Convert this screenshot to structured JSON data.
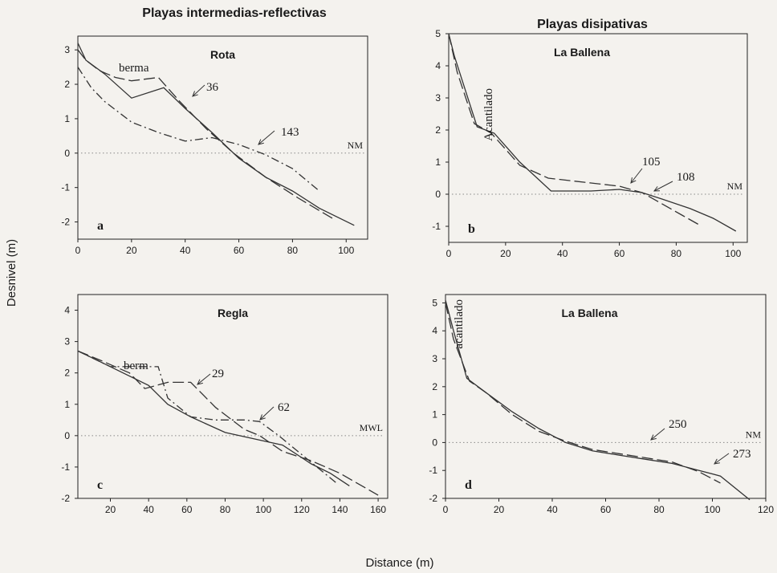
{
  "figure": {
    "column_titles": [
      "Playas intermedias-reflectivas",
      "Playas disipativas"
    ],
    "ylabel": "Desnivel (m)",
    "xlabel": "Distance (m)"
  },
  "chart_data": [
    {
      "type": "line",
      "panel": "a",
      "title": "Rota",
      "xlim": [
        0,
        108
      ],
      "ylim": [
        -2.5,
        3.4
      ],
      "xticks": [
        0,
        20,
        40,
        60,
        80,
        100
      ],
      "yticks": [
        3,
        2,
        1,
        0,
        -1,
        -2
      ],
      "reference_line": {
        "label": "NM",
        "y": 0
      },
      "series": [
        {
          "name": "36",
          "style": "solid",
          "x": [
            0,
            3,
            10,
            20,
            32,
            40,
            50,
            60,
            70,
            80,
            90,
            103
          ],
          "y": [
            3.2,
            2.7,
            2.3,
            1.6,
            1.9,
            1.3,
            0.6,
            -0.15,
            -0.7,
            -1.1,
            -1.6,
            -2.1
          ]
        },
        {
          "name": "berma",
          "style": "long-dash",
          "x": [
            0,
            3,
            8,
            14,
            20,
            30,
            38,
            48,
            58,
            70,
            82,
            95
          ],
          "y": [
            3.0,
            2.7,
            2.4,
            2.2,
            2.1,
            2.2,
            1.5,
            0.7,
            0.0,
            -0.7,
            -1.3,
            -1.9
          ]
        },
        {
          "name": "143",
          "style": "long-dash",
          "x": [
            0,
            5,
            10,
            20,
            30,
            40,
            50,
            60,
            70,
            80,
            90
          ],
          "y": [
            2.5,
            1.9,
            1.5,
            0.9,
            0.6,
            0.35,
            0.45,
            0.25,
            -0.05,
            -0.45,
            -1.1
          ]
        }
      ],
      "annotations": [
        "berma",
        "36",
        "143"
      ]
    },
    {
      "type": "line",
      "panel": "b",
      "title": "La Ballena",
      "xlim": [
        0,
        105
      ],
      "ylim": [
        -1.5,
        5
      ],
      "xticks": [
        0,
        20,
        40,
        60,
        80,
        100
      ],
      "yticks": [
        5,
        4,
        3,
        2,
        1,
        0,
        -1
      ],
      "reference_line": {
        "label": "NM",
        "y": 0
      },
      "series": [
        {
          "name": "108",
          "style": "solid",
          "x": [
            0,
            2,
            10,
            16,
            25,
            36,
            50,
            60,
            68,
            75,
            85,
            93,
            101
          ],
          "y": [
            5.0,
            4.3,
            2.1,
            1.9,
            1.0,
            0.1,
            0.1,
            0.15,
            0.05,
            -0.15,
            -0.45,
            -0.75,
            -1.15
          ]
        },
        {
          "name": "105",
          "style": "long-dash",
          "x": [
            0,
            3,
            9,
            15,
            25,
            35,
            50,
            60,
            68,
            74,
            82,
            88
          ],
          "y": [
            5.0,
            3.8,
            2.2,
            1.9,
            0.9,
            0.5,
            0.35,
            0.25,
            0.05,
            -0.25,
            -0.65,
            -0.95
          ]
        }
      ],
      "annotations": [
        "Acantilado",
        "105",
        "108"
      ]
    },
    {
      "type": "line",
      "panel": "c",
      "title": "Regla",
      "xlim": [
        3,
        165
      ],
      "ylim": [
        -2,
        4.5
      ],
      "xticks": [
        20,
        40,
        60,
        80,
        100,
        120,
        140,
        160
      ],
      "yticks": [
        4,
        3,
        2,
        1,
        0,
        -1,
        -2
      ],
      "reference_line": {
        "label": "MWL",
        "y": 0
      },
      "series": [
        {
          "name": "berm",
          "style": "solid",
          "x": [
            3,
            20,
            40,
            50,
            62,
            80,
            95,
            110,
            125,
            135,
            145
          ],
          "y": [
            2.7,
            2.2,
            1.6,
            1.0,
            0.6,
            0.1,
            -0.1,
            -0.3,
            -0.9,
            -1.2,
            -1.6
          ]
        },
        {
          "name": "29",
          "style": "long-dash",
          "x": [
            3,
            15,
            30,
            38,
            50,
            62,
            75,
            90,
            98,
            110,
            125,
            140,
            160
          ],
          "y": [
            2.7,
            2.4,
            2.0,
            1.5,
            1.7,
            1.7,
            0.9,
            0.2,
            0.0,
            -0.5,
            -0.8,
            -1.2,
            -1.9
          ]
        },
        {
          "name": "62",
          "style": "long-dash",
          "x": [
            3,
            20,
            35,
            45,
            50,
            62,
            75,
            90,
            98,
            108,
            118,
            128,
            138
          ],
          "y": [
            2.7,
            2.2,
            2.2,
            2.2,
            1.2,
            0.6,
            0.5,
            0.5,
            0.45,
            0.0,
            -0.5,
            -1.0,
            -1.5
          ]
        }
      ],
      "annotations": [
        "berm",
        "29",
        "62"
      ]
    },
    {
      "type": "line",
      "panel": "d",
      "title": "La Ballena",
      "xlim": [
        0,
        120
      ],
      "ylim": [
        -2,
        5.3
      ],
      "xticks": [
        0,
        20,
        40,
        60,
        80,
        100,
        120
      ],
      "yticks": [
        5,
        4,
        3,
        2,
        1,
        0,
        -1,
        -2
      ],
      "reference_line": {
        "label": "NM",
        "y": 0
      },
      "series": [
        {
          "name": "273",
          "style": "solid",
          "x": [
            0,
            3,
            8,
            15,
            25,
            35,
            45,
            55,
            65,
            75,
            85,
            95,
            103,
            114
          ],
          "y": [
            5.1,
            4.0,
            2.3,
            1.8,
            1.1,
            0.5,
            0.0,
            -0.3,
            -0.45,
            -0.6,
            -0.75,
            -1.0,
            -1.2,
            -2.05
          ]
        },
        {
          "name": "250",
          "style": "long-dash",
          "x": [
            0,
            3,
            9,
            15,
            25,
            35,
            45,
            55,
            65,
            75,
            85,
            95,
            103
          ],
          "y": [
            5.0,
            3.7,
            2.2,
            1.8,
            1.0,
            0.4,
            0.05,
            -0.25,
            -0.4,
            -0.55,
            -0.7,
            -1.05,
            -1.45
          ]
        }
      ],
      "annotations": [
        "acantilado",
        "250",
        "273"
      ]
    }
  ]
}
